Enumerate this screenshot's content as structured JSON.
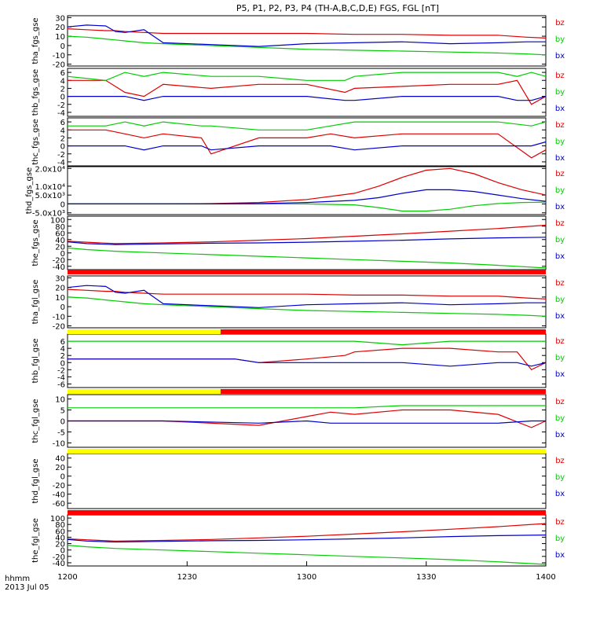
{
  "title": "P5, P1, P2, P3, P4 (TH-A,B,C,D,E) FGS, FGL [nT]",
  "time_label": "hhmm",
  "date_label": "2013 Jul 05",
  "x_ticks": [
    "1200",
    "1230",
    "1300",
    "1330",
    "1400"
  ],
  "colors": {
    "bz": "#dd0000",
    "by": "#00cc00",
    "bx": "#0000cc",
    "bar_red": "#ff0000",
    "bar_yellow": "#ffff00",
    "axis": "#000000"
  },
  "chart_data": [
    {
      "type": "line",
      "ylabel": "tha_fgs_gse",
      "yticks": [
        "30",
        "20",
        "10",
        "0",
        "-10",
        "-20"
      ],
      "ylim": [
        -22,
        32
      ],
      "x": [
        0,
        0.04,
        0.08,
        0.1,
        0.12,
        0.16,
        0.2,
        0.3,
        0.4,
        0.5,
        0.6,
        0.7,
        0.8,
        0.9,
        0.96,
        1
      ],
      "series": [
        {
          "name": "bz",
          "values": [
            18,
            17,
            16,
            16,
            15,
            14,
            13,
            13,
            13,
            13,
            12,
            12,
            11,
            11,
            9,
            8
          ]
        },
        {
          "name": "by",
          "values": [
            10,
            9,
            7,
            6,
            5,
            3,
            2,
            0,
            -2,
            -4,
            -5,
            -6,
            -7,
            -8,
            -9,
            -10
          ]
        },
        {
          "name": "bx",
          "values": [
            20,
            22,
            21,
            15,
            14,
            17,
            3,
            1,
            -1,
            2,
            3,
            4,
            2,
            3,
            4,
            4
          ]
        }
      ],
      "legend": [
        "bz",
        "by",
        "bx"
      ],
      "legend_position": "right"
    },
    {
      "type": "line",
      "ylabel": "thb_fgs_gse",
      "yticks": [
        "6",
        "4",
        "2",
        "0",
        "-2",
        "-4"
      ],
      "ylim": [
        -5,
        7
      ],
      "x": [
        0,
        0.08,
        0.12,
        0.16,
        0.2,
        0.3,
        0.4,
        0.5,
        0.58,
        0.6,
        0.7,
        0.8,
        0.9,
        0.94,
        0.97,
        1
      ],
      "series": [
        {
          "name": "bz",
          "values": [
            4,
            4,
            1,
            0,
            3,
            2,
            3,
            3,
            1,
            2,
            2.5,
            3,
            3,
            4,
            -2,
            0
          ]
        },
        {
          "name": "by",
          "values": [
            5,
            4,
            6,
            5,
            6,
            5,
            5,
            4,
            4,
            5,
            6,
            6,
            6,
            5,
            6,
            5
          ]
        },
        {
          "name": "bx",
          "values": [
            0,
            0,
            0,
            -1,
            0,
            0,
            0,
            0,
            -1,
            -1,
            0,
            0,
            0,
            -1,
            -1,
            0
          ]
        }
      ],
      "legend": [
        "bz",
        "by",
        "bx"
      ],
      "legend_position": "right"
    },
    {
      "type": "line",
      "ylabel": "thc_fgs_gse",
      "yticks": [
        "6",
        "4",
        "2",
        "0",
        "-2",
        "-4"
      ],
      "ylim": [
        -5,
        7
      ],
      "x": [
        0,
        0.08,
        0.12,
        0.16,
        0.2,
        0.28,
        0.3,
        0.4,
        0.5,
        0.55,
        0.6,
        0.7,
        0.8,
        0.9,
        0.97,
        1
      ],
      "series": [
        {
          "name": "bz",
          "values": [
            4,
            4,
            3,
            2,
            3,
            2,
            -2,
            2,
            2,
            3,
            2,
            3,
            3,
            3,
            -3,
            -1
          ]
        },
        {
          "name": "by",
          "values": [
            5,
            5,
            6,
            5,
            6,
            5,
            5,
            4,
            4,
            5,
            6,
            6,
            6,
            6,
            5,
            6
          ]
        },
        {
          "name": "bx",
          "values": [
            0,
            0,
            0,
            -1,
            0,
            0,
            -1,
            0,
            0,
            0,
            -1,
            0,
            0,
            0,
            0,
            1
          ]
        }
      ],
      "legend": [
        "bz",
        "by",
        "bx"
      ],
      "legend_position": "right"
    },
    {
      "type": "line",
      "ylabel": "thd_fgs_gse",
      "yticks": [
        "2.0x10⁴",
        "1.0x10⁴",
        "5.0x10³",
        "0",
        "-5.0x10³"
      ],
      "ylim": [
        -6000,
        21000
      ],
      "x": [
        0,
        0.1,
        0.2,
        0.3,
        0.4,
        0.5,
        0.6,
        0.65,
        0.7,
        0.75,
        0.8,
        0.85,
        0.9,
        0.95,
        1
      ],
      "series": [
        {
          "name": "bz",
          "values": [
            0,
            0,
            0,
            200,
            800,
            2500,
            6000,
            10000,
            15000,
            19000,
            20000,
            17000,
            12000,
            8000,
            5000
          ]
        },
        {
          "name": "by",
          "values": [
            0,
            0,
            0,
            0,
            0,
            0,
            -500,
            -2000,
            -4000,
            -4000,
            -3000,
            -1000,
            200,
            800,
            1000
          ]
        },
        {
          "name": "bx",
          "values": [
            0,
            0,
            0,
            0,
            200,
            800,
            2000,
            3500,
            6000,
            8000,
            8000,
            7000,
            5000,
            3000,
            1500
          ]
        }
      ],
      "legend": [
        "bz",
        "by",
        "bx"
      ],
      "legend_position": "right"
    },
    {
      "type": "line",
      "ylabel": "the_fgs_gse",
      "yticks": [
        "100",
        "80",
        "60",
        "40",
        "20",
        "0",
        "-20",
        "-40"
      ],
      "ylim": [
        -50,
        110
      ],
      "x": [
        0,
        0.04,
        0.1,
        0.2,
        0.3,
        0.4,
        0.5,
        0.6,
        0.7,
        0.8,
        0.9,
        1
      ],
      "series": [
        {
          "name": "bz",
          "values": [
            35,
            32,
            28,
            30,
            33,
            38,
            43,
            50,
            57,
            65,
            73,
            83
          ]
        },
        {
          "name": "by",
          "values": [
            15,
            10,
            5,
            0,
            -5,
            -10,
            -15,
            -20,
            -25,
            -30,
            -37,
            -45
          ]
        },
        {
          "name": "bx",
          "values": [
            33,
            28,
            25,
            27,
            29,
            30,
            32,
            35,
            38,
            42,
            45,
            47
          ]
        }
      ],
      "legend": [
        "bz",
        "by",
        "bx"
      ],
      "legend_position": "right"
    },
    {
      "type": "line",
      "ylabel": "tha_fgl_gse",
      "yticks": [
        "30",
        "20",
        "10",
        "0",
        "-10",
        "-20"
      ],
      "ylim": [
        -22,
        32
      ],
      "x": [
        0,
        0.04,
        0.08,
        0.1,
        0.12,
        0.16,
        0.2,
        0.3,
        0.4,
        0.5,
        0.6,
        0.7,
        0.8,
        0.9,
        0.96,
        1
      ],
      "series": [
        {
          "name": "bz",
          "values": [
            18,
            17,
            16,
            16,
            15,
            14,
            13,
            13,
            13,
            13,
            12,
            12,
            11,
            11,
            9,
            8
          ]
        },
        {
          "name": "by",
          "values": [
            10,
            9,
            7,
            6,
            5,
            3,
            2,
            0,
            -2,
            -4,
            -5,
            -6,
            -7,
            -8,
            -9,
            -10
          ]
        },
        {
          "name": "bx",
          "values": [
            20,
            22,
            21,
            15,
            14,
            17,
            3,
            1,
            -1,
            2,
            3,
            4,
            2,
            3,
            4,
            4
          ]
        }
      ],
      "legend": [
        "bz",
        "by",
        "bx"
      ],
      "legend_position": "right"
    },
    {
      "type": "line",
      "ylabel": "thb_fgl_gse",
      "yticks": [
        "6",
        "4",
        "2",
        "0",
        "-2",
        "-4",
        "-6"
      ],
      "ylim": [
        -7,
        8
      ],
      "x": [
        0,
        0.2,
        0.35,
        0.4,
        0.5,
        0.58,
        0.6,
        0.7,
        0.8,
        0.9,
        0.94,
        0.97,
        1
      ],
      "series": [
        {
          "name": "bz",
          "values": [
            1,
            1,
            1,
            0,
            1,
            2,
            3,
            4,
            4,
            3,
            3,
            -2,
            0
          ]
        },
        {
          "name": "by",
          "values": [
            6,
            6,
            6,
            6,
            6,
            6,
            6,
            5,
            6,
            6,
            6,
            6,
            6
          ]
        },
        {
          "name": "bx",
          "values": [
            1,
            1,
            1,
            0,
            0,
            0,
            0,
            0,
            -1,
            0,
            0,
            -1,
            0
          ]
        }
      ],
      "legend": [
        "bz",
        "by",
        "bx"
      ],
      "legend_position": "right"
    },
    {
      "type": "line",
      "ylabel": "thc_fgl_gse",
      "yticks": [
        "10",
        "5",
        "0",
        "-5",
        "-10"
      ],
      "ylim": [
        -12,
        12
      ],
      "x": [
        0,
        0.2,
        0.2,
        0.4,
        0.5,
        0.55,
        0.6,
        0.7,
        0.8,
        0.9,
        0.97,
        1
      ],
      "series": [
        {
          "name": "bz",
          "values": [
            0,
            0,
            0,
            -2,
            2,
            4,
            3,
            5,
            5,
            3,
            -3,
            0
          ]
        },
        {
          "name": "by",
          "values": [
            6,
            6,
            6,
            6,
            6,
            6,
            6,
            7,
            7,
            7,
            7,
            7
          ]
        },
        {
          "name": "bx",
          "values": [
            0,
            0,
            0,
            -1,
            0,
            -1,
            -1,
            -1,
            -1,
            -1,
            0,
            0
          ]
        }
      ],
      "legend": [
        "bz",
        "by",
        "bx"
      ],
      "legend_position": "right"
    },
    {
      "type": "line",
      "ylabel": "thd_fgl_gse",
      "yticks": [
        "40",
        "20",
        "0",
        "-20",
        "-40",
        "-60"
      ],
      "ylim": [
        -72,
        50
      ],
      "x": [],
      "series": [],
      "legend": [
        "bz",
        "by",
        "bx"
      ],
      "legend_position": "right"
    },
    {
      "type": "line",
      "ylabel": "the_fgl_gse",
      "yticks": [
        "100",
        "80",
        "60",
        "40",
        "20",
        "0",
        "-20",
        "-40"
      ],
      "ylim": [
        -50,
        110
      ],
      "x": [
        0,
        0.04,
        0.1,
        0.2,
        0.3,
        0.4,
        0.5,
        0.6,
        0.7,
        0.8,
        0.9,
        1
      ],
      "series": [
        {
          "name": "bz",
          "values": [
            35,
            32,
            28,
            30,
            33,
            38,
            43,
            50,
            57,
            65,
            73,
            83
          ]
        },
        {
          "name": "by",
          "values": [
            15,
            10,
            5,
            0,
            -5,
            -10,
            -15,
            -20,
            -25,
            -30,
            -37,
            -45
          ]
        },
        {
          "name": "bx",
          "values": [
            33,
            28,
            25,
            27,
            29,
            30,
            32,
            35,
            38,
            42,
            45,
            47
          ]
        }
      ],
      "legend": [
        "bz",
        "by",
        "bx"
      ],
      "legend_position": "right"
    }
  ],
  "mode_bars": [
    {
      "after_panel": 4,
      "segments": [
        {
          "color": "red",
          "from": 0,
          "to": 1
        }
      ]
    },
    {
      "after_panel": 5,
      "segments": [
        {
          "color": "yellow",
          "from": 0,
          "to": 0.32
        },
        {
          "color": "red",
          "from": 0.32,
          "to": 1
        }
      ]
    },
    {
      "after_panel": 6,
      "segments": [
        {
          "color": "yellow",
          "from": 0,
          "to": 0.32
        },
        {
          "color": "red",
          "from": 0.32,
          "to": 1
        }
      ]
    },
    {
      "after_panel": 7,
      "segments": [
        {
          "color": "yellow",
          "from": 0,
          "to": 1
        }
      ]
    },
    {
      "after_panel": 8,
      "segments": [
        {
          "color": "red",
          "from": 0,
          "to": 1
        }
      ]
    }
  ]
}
